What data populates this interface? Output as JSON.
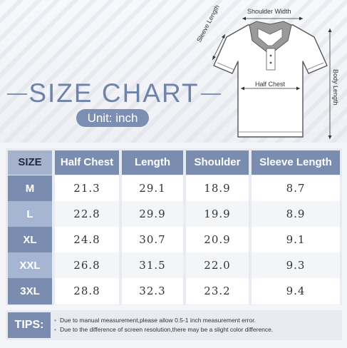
{
  "title": "SIZE CHART",
  "unit": "Unit: inch",
  "diagram": {
    "shoulder_width": "Shoulder Width",
    "sleeve_length": "Sleeve Length",
    "half_chest": "Half Chest",
    "body_length": "Body Length"
  },
  "table": {
    "headers": [
      "SIZE",
      "Half Chest",
      "Length",
      "Shoulder",
      "Sleeve Length"
    ],
    "rows": [
      {
        "size": "M",
        "half_chest": "21.3",
        "length": "29.1",
        "shoulder": "18.9",
        "sleeve": "8.7"
      },
      {
        "size": "L",
        "half_chest": "22.8",
        "length": "29.9",
        "shoulder": "19.9",
        "sleeve": "8.9"
      },
      {
        "size": "XL",
        "half_chest": "24.8",
        "length": "30.7",
        "shoulder": "20.9",
        "sleeve": "9.1"
      },
      {
        "size": "XXL",
        "half_chest": "26.8",
        "length": "31.5",
        "shoulder": "22.0",
        "sleeve": "9.3"
      },
      {
        "size": "3XL",
        "half_chest": "28.8",
        "length": "32.3",
        "shoulder": "23.2",
        "sleeve": "9.4"
      }
    ]
  },
  "tips": {
    "label": "TIPS:",
    "lines": [
      "Due to manual measurement,please allow 0.5-1 inch measurement error.",
      "Due to the difference of screen resolution,there may be a slight color difference."
    ]
  },
  "colors": {
    "accent": "#7a8db1",
    "accent_light": "#a6b6d2",
    "title": "#6f83a8"
  }
}
